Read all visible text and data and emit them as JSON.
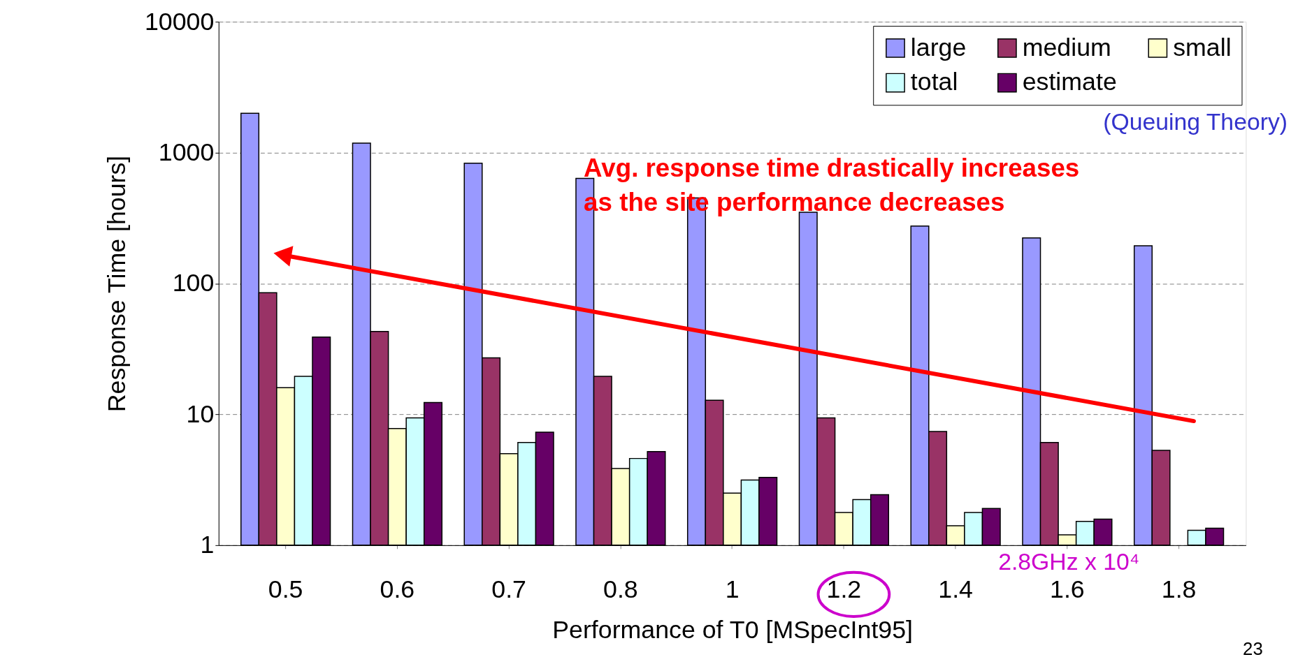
{
  "chart_data": {
    "type": "bar",
    "xlabel": "Performance of T0 [MSpecInt95]",
    "ylabel": "Response Time [hours]",
    "categories": [
      "0.5",
      "0.6",
      "0.7",
      "0.8",
      "1",
      "1.2",
      "1.4",
      "1.6",
      "1.8"
    ],
    "series": [
      {
        "name": "large",
        "color": "#9999ff",
        "values": [
          2000,
          1180,
          830,
          635,
          450,
          350,
          275,
          223,
          194
        ]
      },
      {
        "name": "medium",
        "color": "#993366",
        "values": [
          85,
          43,
          27,
          19.5,
          12.8,
          9.4,
          7.4,
          6.1,
          5.3
        ]
      },
      {
        "name": "small",
        "color": "#ffffcc",
        "values": [
          16,
          7.8,
          5.0,
          3.85,
          2.5,
          1.78,
          1.41,
          1.2,
          null
        ]
      },
      {
        "name": "total",
        "color": "#ccffff",
        "values": [
          19.5,
          9.4,
          6.1,
          4.6,
          3.15,
          2.23,
          1.78,
          1.52,
          1.3
        ]
      },
      {
        "name": "estimate",
        "color": "#660066",
        "values": [
          39,
          12.3,
          7.3,
          5.2,
          3.3,
          2.43,
          1.91,
          1.58,
          1.35
        ]
      }
    ],
    "log": true,
    "ylim": [
      1,
      10000
    ],
    "yticks": [
      1,
      10,
      100,
      1000,
      10000
    ],
    "grid": "y",
    "legend": "top right",
    "annotations": [
      "(Queuing Theory)",
      "Avg. response time drastically increases\nas the site performance decreases",
      "2.8GHz x 10⁴",
      "23"
    ]
  }
}
